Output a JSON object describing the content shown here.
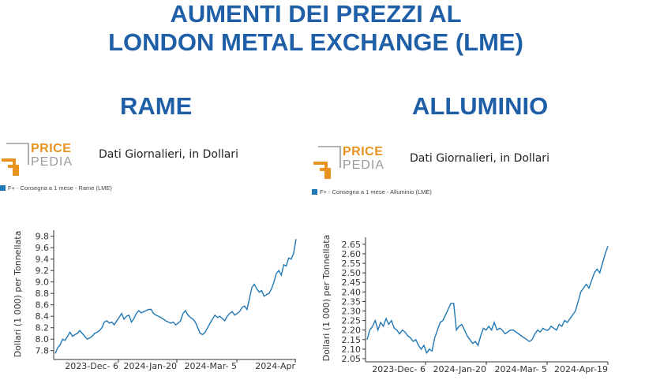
{
  "header": {
    "line1": "AUMENTI DEI PREZZI AL",
    "line2": "LONDON METAL EXCHANGE (LME)"
  },
  "panels": [
    {
      "heading": "RAME",
      "logo": {
        "line1": "PRICE",
        "line2": "PEDIA"
      },
      "description": "Dati Giornalieri, in Dollari",
      "legend": "F+ - Consegna a 1 mese - Rame (LME)"
    },
    {
      "heading": "ALLUMINIO",
      "logo": {
        "line1": "PRICE",
        "line2": "PEDIA"
      },
      "description": "Dati Giornalieri, in Dollari",
      "legend": "F+ - Consegna a 1 mese - Alluminio (LME)"
    }
  ],
  "colors": {
    "title": "#1f5fa8",
    "series": "#1f77b4",
    "logo_orange": "#e8931f",
    "logo_gray": "#9b9b9b"
  },
  "chart_data": [
    {
      "type": "line",
      "title": "",
      "ylabel": "Dollari (1 000) per Tonnellata",
      "ylim": [
        7.7,
        9.85
      ],
      "yticks": [
        7.8,
        8.0,
        8.2,
        8.4,
        8.6,
        8.8,
        9.0,
        9.2,
        9.4,
        9.6,
        9.8
      ],
      "xticks": [
        "2023-Dec- 6",
        "2024-Jan-20",
        "2024-Mar- 5",
        "2024-Apr"
      ],
      "grid": false,
      "series": [
        {
          "name": "F+ - Consegna a 1 mese - Rame (LME)",
          "values": [
            7.75,
            7.85,
            7.9,
            8.0,
            7.98,
            8.05,
            8.12,
            8.05,
            8.08,
            8.1,
            8.15,
            8.1,
            8.05,
            8.0,
            8.02,
            8.05,
            8.1,
            8.12,
            8.15,
            8.2,
            8.3,
            8.32,
            8.28,
            8.3,
            8.25,
            8.32,
            8.38,
            8.45,
            8.35,
            8.4,
            8.42,
            8.3,
            8.36,
            8.45,
            8.5,
            8.46,
            8.48,
            8.5,
            8.52,
            8.52,
            8.45,
            8.42,
            8.4,
            8.38,
            8.35,
            8.32,
            8.3,
            8.28,
            8.3,
            8.25,
            8.28,
            8.32,
            8.45,
            8.5,
            8.42,
            8.38,
            8.35,
            8.3,
            8.2,
            8.1,
            8.08,
            8.12,
            8.2,
            8.28,
            8.35,
            8.42,
            8.38,
            8.4,
            8.36,
            8.32,
            8.4,
            8.45,
            8.48,
            8.42,
            8.45,
            8.48,
            8.55,
            8.58,
            8.52,
            8.7,
            8.9,
            8.96,
            8.88,
            8.82,
            8.85,
            8.75,
            8.78,
            8.8,
            8.88,
            9.0,
            9.15,
            9.2,
            9.12,
            9.3,
            9.28,
            9.42,
            9.4,
            9.5,
            9.75
          ]
        }
      ]
    },
    {
      "type": "line",
      "title": "",
      "ylabel": "Dollari (1 000) per Tonnellata",
      "ylim": [
        2.05,
        2.67
      ],
      "yticks": [
        2.05,
        2.1,
        2.15,
        2.2,
        2.25,
        2.3,
        2.35,
        2.4,
        2.45,
        2.5,
        2.55,
        2.6,
        2.65
      ],
      "xticks": [
        "2023-Dec- 6",
        "2024-Jan-20",
        "2024-Mar- 5",
        "2024-Apr-19"
      ],
      "grid": false,
      "series": [
        {
          "name": "F+ - Consegna a 1 mese - Alluminio (LME)",
          "values": [
            2.15,
            2.2,
            2.22,
            2.25,
            2.2,
            2.24,
            2.22,
            2.26,
            2.23,
            2.25,
            2.21,
            2.2,
            2.18,
            2.2,
            2.19,
            2.17,
            2.16,
            2.14,
            2.15,
            2.12,
            2.1,
            2.12,
            2.08,
            2.1,
            2.09,
            2.16,
            2.2,
            2.24,
            2.25,
            2.28,
            2.31,
            2.34,
            2.34,
            2.2,
            2.22,
            2.23,
            2.2,
            2.17,
            2.15,
            2.13,
            2.14,
            2.12,
            2.17,
            2.21,
            2.2,
            2.22,
            2.2,
            2.24,
            2.2,
            2.21,
            2.2,
            2.18,
            2.19,
            2.2,
            2.2,
            2.19,
            2.18,
            2.17,
            2.16,
            2.15,
            2.14,
            2.15,
            2.18,
            2.2,
            2.19,
            2.21,
            2.2,
            2.2,
            2.22,
            2.21,
            2.2,
            2.23,
            2.22,
            2.25,
            2.24,
            2.26,
            2.28,
            2.3,
            2.35,
            2.4,
            2.42,
            2.44,
            2.42,
            2.46,
            2.5,
            2.52,
            2.5,
            2.55,
            2.6,
            2.64
          ]
        }
      ]
    }
  ]
}
